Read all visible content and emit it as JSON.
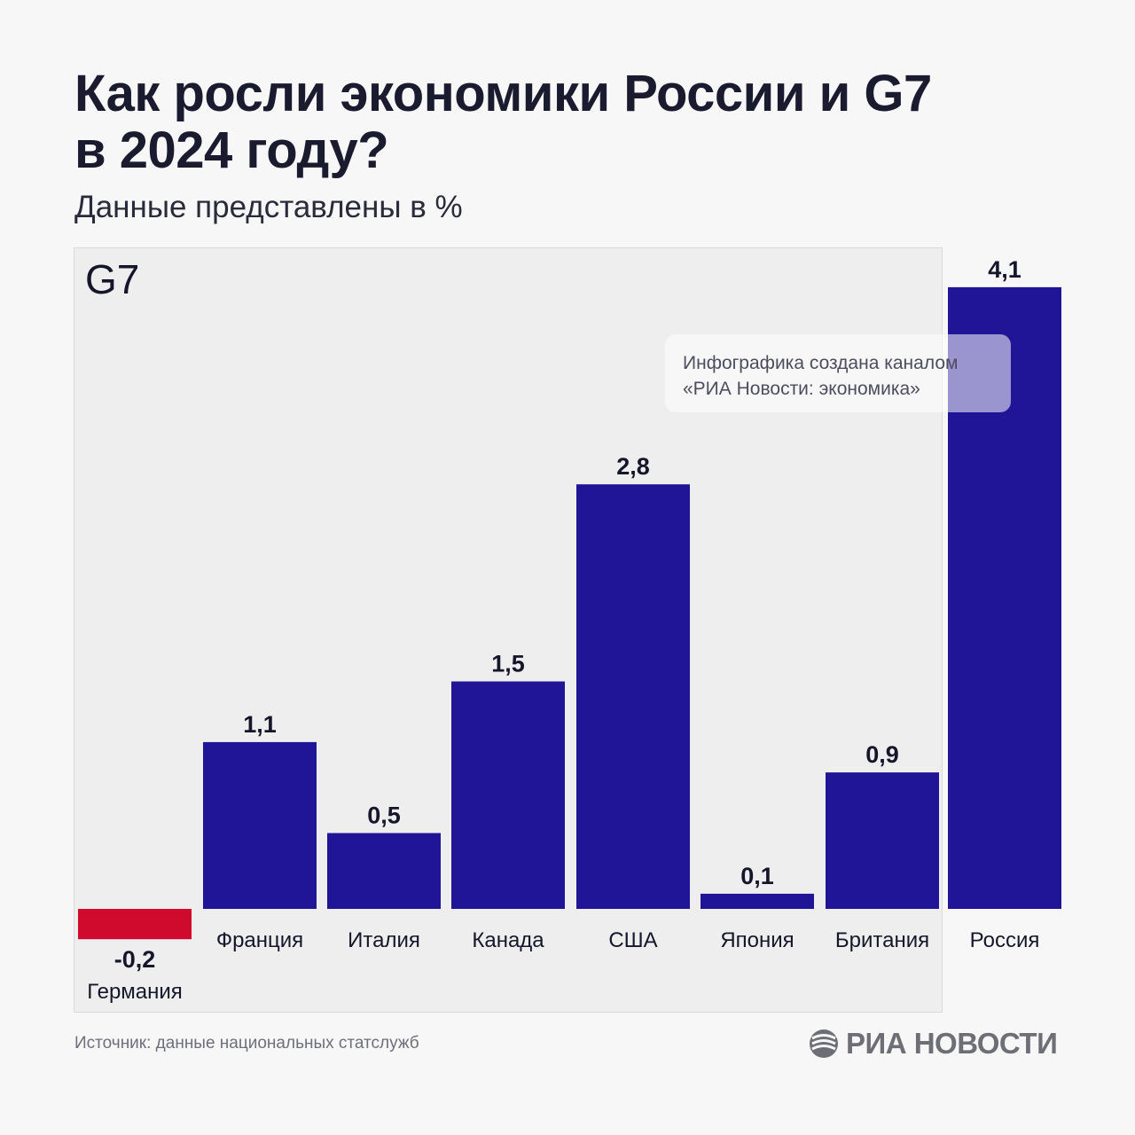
{
  "header": {
    "title_line1": "Как росли экономики России и G7",
    "title_line2": "в 2024 году?",
    "subtitle": "Данные представлены в %"
  },
  "panel": {
    "label": "G7"
  },
  "notice": {
    "line1": "Инфографика создана каналом",
    "line2": "«РИА Новости: экономика»"
  },
  "footer": {
    "source": "Источник: данные национальных статслужб",
    "brand": "РИА НОВОСТИ"
  },
  "colors": {
    "positive": "#1f1596",
    "negative": "#cf0a2c",
    "panel": "#eeeeef"
  },
  "icons": {
    "brand": "ria-logo-icon"
  },
  "chart_data": {
    "type": "bar",
    "title": "Как росли экономики России и G7 в 2024 году?",
    "subtitle": "Данные представлены в %",
    "categories": [
      "Германия",
      "Франция",
      "Италия",
      "Канада",
      "США",
      "Япония",
      "Британия",
      "Россия"
    ],
    "values": [
      -0.2,
      1.1,
      0.5,
      1.5,
      2.8,
      0.1,
      0.9,
      4.1
    ],
    "value_labels": [
      "-0,2",
      "1,1",
      "0,5",
      "1,5",
      "2,8",
      "0,1",
      "0,9",
      "4,1"
    ],
    "groups": [
      "G7",
      "G7",
      "G7",
      "G7",
      "G7",
      "G7",
      "G7",
      ""
    ],
    "ylim": [
      -0.2,
      4.1
    ],
    "grid": false,
    "legend": "none"
  }
}
